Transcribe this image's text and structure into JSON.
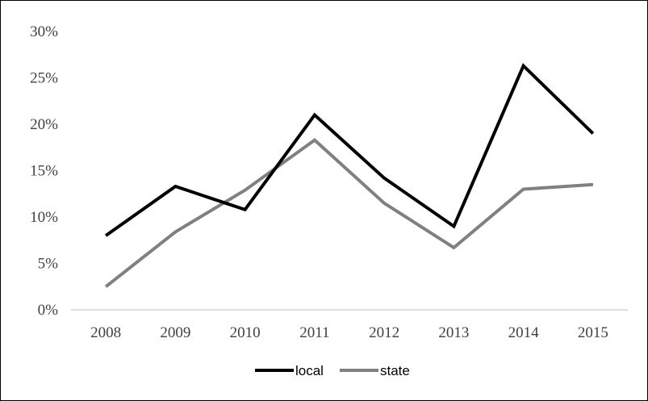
{
  "chart_data": {
    "type": "line",
    "title": "",
    "xlabel": "",
    "ylabel": "",
    "categories": [
      "2008",
      "2009",
      "2010",
      "2011",
      "2012",
      "2013",
      "2014",
      "2015"
    ],
    "y_ticks": [
      "0%",
      "5%",
      "10%",
      "15%",
      "20%",
      "25%",
      "30%"
    ],
    "ylim": [
      0,
      30
    ],
    "y_unit": "percent",
    "grid": false,
    "legend_position": "bottom",
    "series": [
      {
        "name": "local",
        "color": "#000000",
        "values": [
          8.0,
          13.3,
          10.8,
          21.0,
          14.2,
          9.0,
          26.3,
          19.0
        ]
      },
      {
        "name": "state",
        "color": "#808080",
        "values": [
          2.5,
          8.4,
          12.9,
          18.3,
          11.5,
          6.7,
          13.0,
          13.5
        ]
      }
    ]
  }
}
